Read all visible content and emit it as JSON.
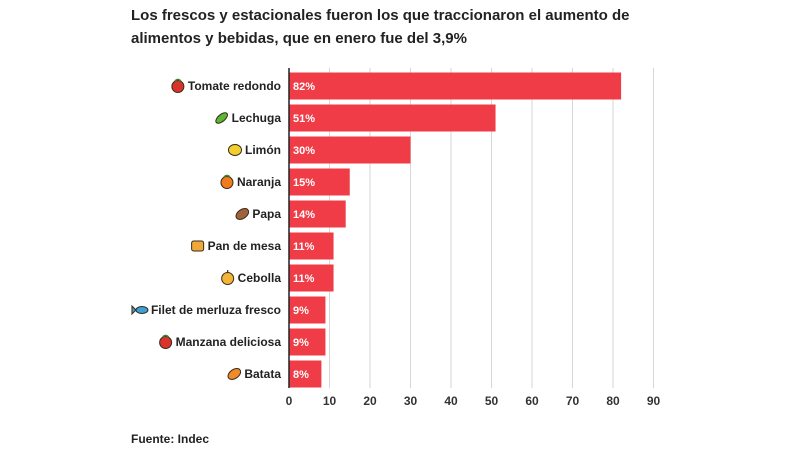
{
  "title": "Los frescos y estacionales fueron los que traccionaron el aumento de alimentos y bebidas, que en enero fue del 3,9%",
  "source": "Fuente: Indec",
  "chart_data": {
    "type": "bar",
    "orientation": "horizontal",
    "categories": [
      "Tomate redondo",
      "Lechuga",
      "Limón",
      "Naranja",
      "Papa",
      "Pan de mesa",
      "Cebolla",
      "Filet de merluza fresco",
      "Manzana deliciosa",
      "Batata"
    ],
    "values": [
      82,
      51,
      30,
      15,
      14,
      11,
      11,
      9,
      9,
      8
    ],
    "data_labels": [
      "82%",
      "51%",
      "30%",
      "15%",
      "14%",
      "11%",
      "11%",
      "9%",
      "9%",
      "8%"
    ],
    "icons": [
      "tomato-icon",
      "lettuce-icon",
      "lemon-icon",
      "orange-icon",
      "potato-icon",
      "bread-icon",
      "onion-icon",
      "fish-icon",
      "apple-icon",
      "sweet-potato-icon"
    ],
    "icon_colors": [
      "#d9342b",
      "#5cb832",
      "#f2cf2e",
      "#f07a1e",
      "#a0623a",
      "#f0a83a",
      "#f2b537",
      "#3aa0d8",
      "#d9342b",
      "#f08a2a"
    ],
    "xlim": [
      0,
      90
    ],
    "xticks": [
      0,
      10,
      20,
      30,
      40,
      50,
      60,
      70,
      80,
      90
    ],
    "grid": true,
    "bar_color": "#f03c46",
    "xlabel": "",
    "ylabel": ""
  }
}
